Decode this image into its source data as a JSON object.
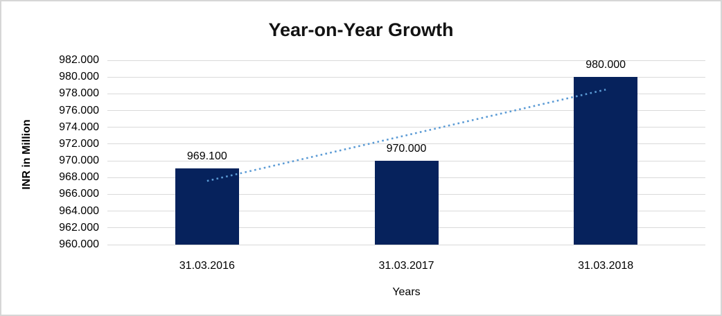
{
  "chart_data": {
    "type": "bar",
    "title": "Year-on-Year Growth",
    "xlabel": "Years",
    "ylabel": "INR in Million",
    "categories": [
      "31.03.2016",
      "31.03.2017",
      "31.03.2018"
    ],
    "values": [
      969.1,
      970.0,
      980.0
    ],
    "data_labels": [
      "969.100",
      "970.000",
      "980.000"
    ],
    "ylim": [
      960,
      982
    ],
    "ytick_step": 2,
    "ytick_labels": [
      "982.000",
      "980.000",
      "978.000",
      "976.000",
      "974.000",
      "972.000",
      "970.000",
      "968.000",
      "966.000",
      "964.000",
      "962.000",
      "960.000"
    ],
    "grid": true,
    "legend_position": "none",
    "trendline": {
      "type": "linear",
      "style": "dotted",
      "start_value": 967.6,
      "end_value": 978.5
    },
    "colors": {
      "bar": "#06225c",
      "trendline": "#5b9bd5",
      "gridline": "#d9d9d9",
      "axis_line": "#d9d9d9",
      "text": "#000000",
      "title_text": "#121212",
      "background": "#ffffff",
      "frame_border": "#d6d6d6"
    }
  }
}
